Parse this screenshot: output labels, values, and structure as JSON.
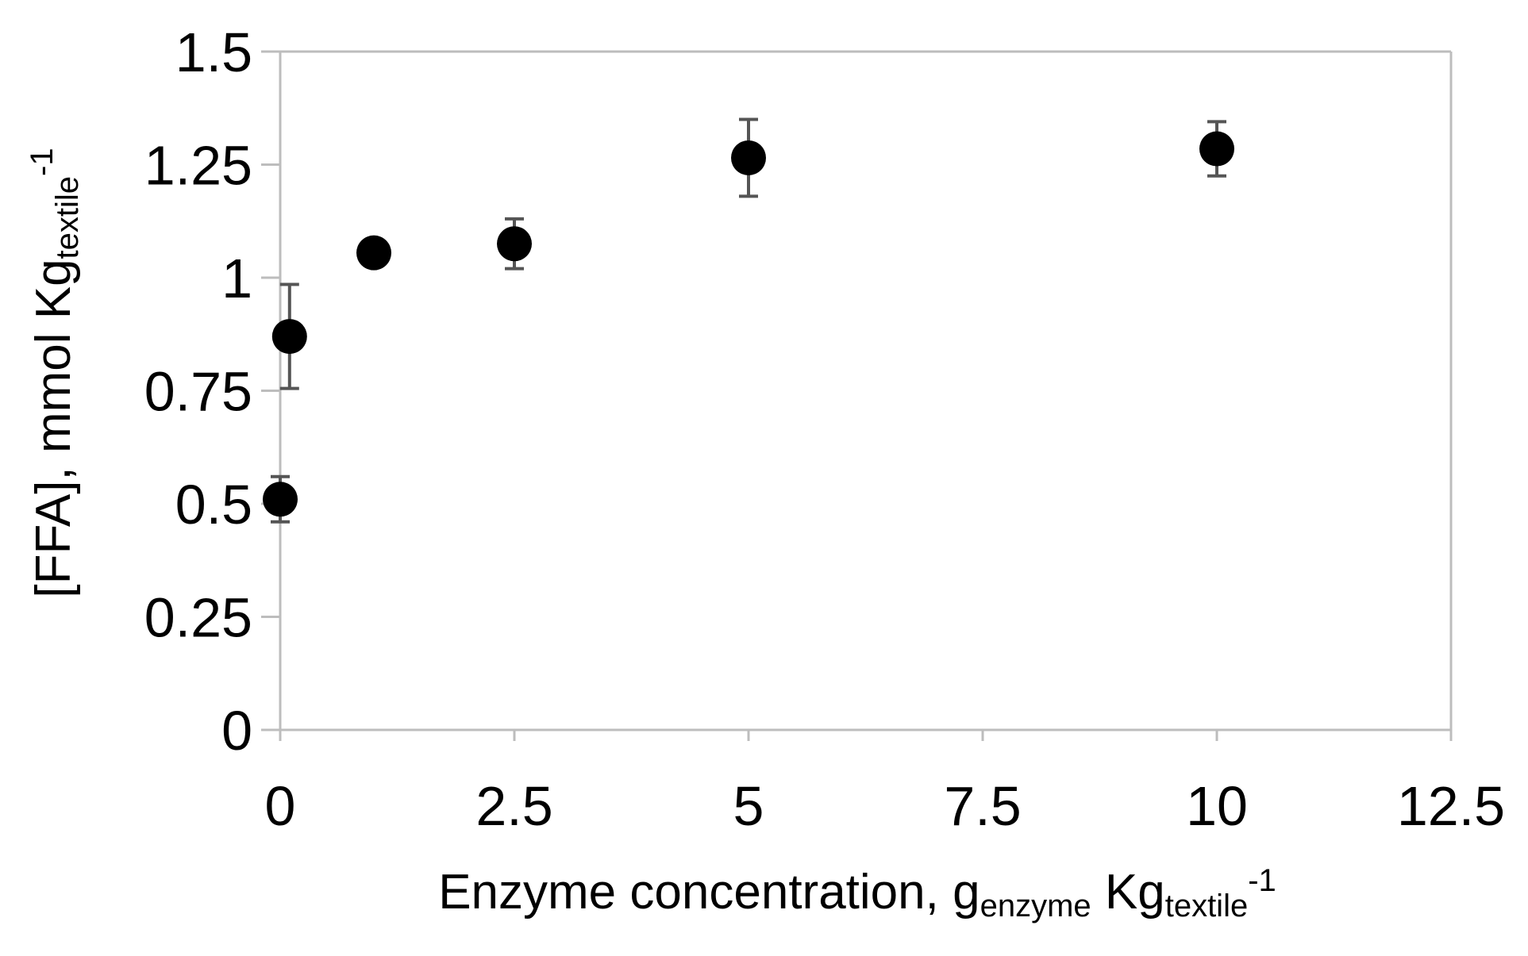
{
  "chart_data": {
    "type": "scatter",
    "title": "",
    "xlabel": {
      "parts": [
        {
          "text": "Enzyme concentration, g",
          "style": "normal"
        },
        {
          "text": "enzyme",
          "style": "sub"
        },
        {
          "text": " Kg",
          "style": "normal"
        },
        {
          "text": "textile",
          "style": "sub"
        },
        {
          "text": "-1",
          "style": "sup"
        }
      ]
    },
    "ylabel": {
      "parts": [
        {
          "text": "[FFA], mmol Kg",
          "style": "normal"
        },
        {
          "text": "textile",
          "style": "sub"
        },
        {
          "text": "-1",
          "style": "sup"
        }
      ]
    },
    "xlim": [
      0,
      12.5
    ],
    "ylim": [
      0,
      1.5
    ],
    "x_ticks": [
      "0",
      "2.5",
      "5",
      "7.5",
      "10",
      "12.5"
    ],
    "y_ticks": [
      "0",
      "0.25",
      "0.5",
      "0.75",
      "1",
      "1.25",
      "1.5"
    ],
    "grid": false,
    "legend": "none",
    "points": [
      {
        "x": 0,
        "y": 0.51,
        "err": 0.05
      },
      {
        "x": 0.1,
        "y": 0.87,
        "err": 0.115
      },
      {
        "x": 1,
        "y": 1.055,
        "err": 0.02
      },
      {
        "x": 2.5,
        "y": 1.075,
        "err": 0.055
      },
      {
        "x": 5,
        "y": 1.265,
        "err": 0.085
      },
      {
        "x": 10,
        "y": 1.285,
        "err": 0.06
      }
    ],
    "colors": {
      "marker": "#000000",
      "errorbar": "#555555",
      "axis": "#bdbdbd"
    }
  }
}
